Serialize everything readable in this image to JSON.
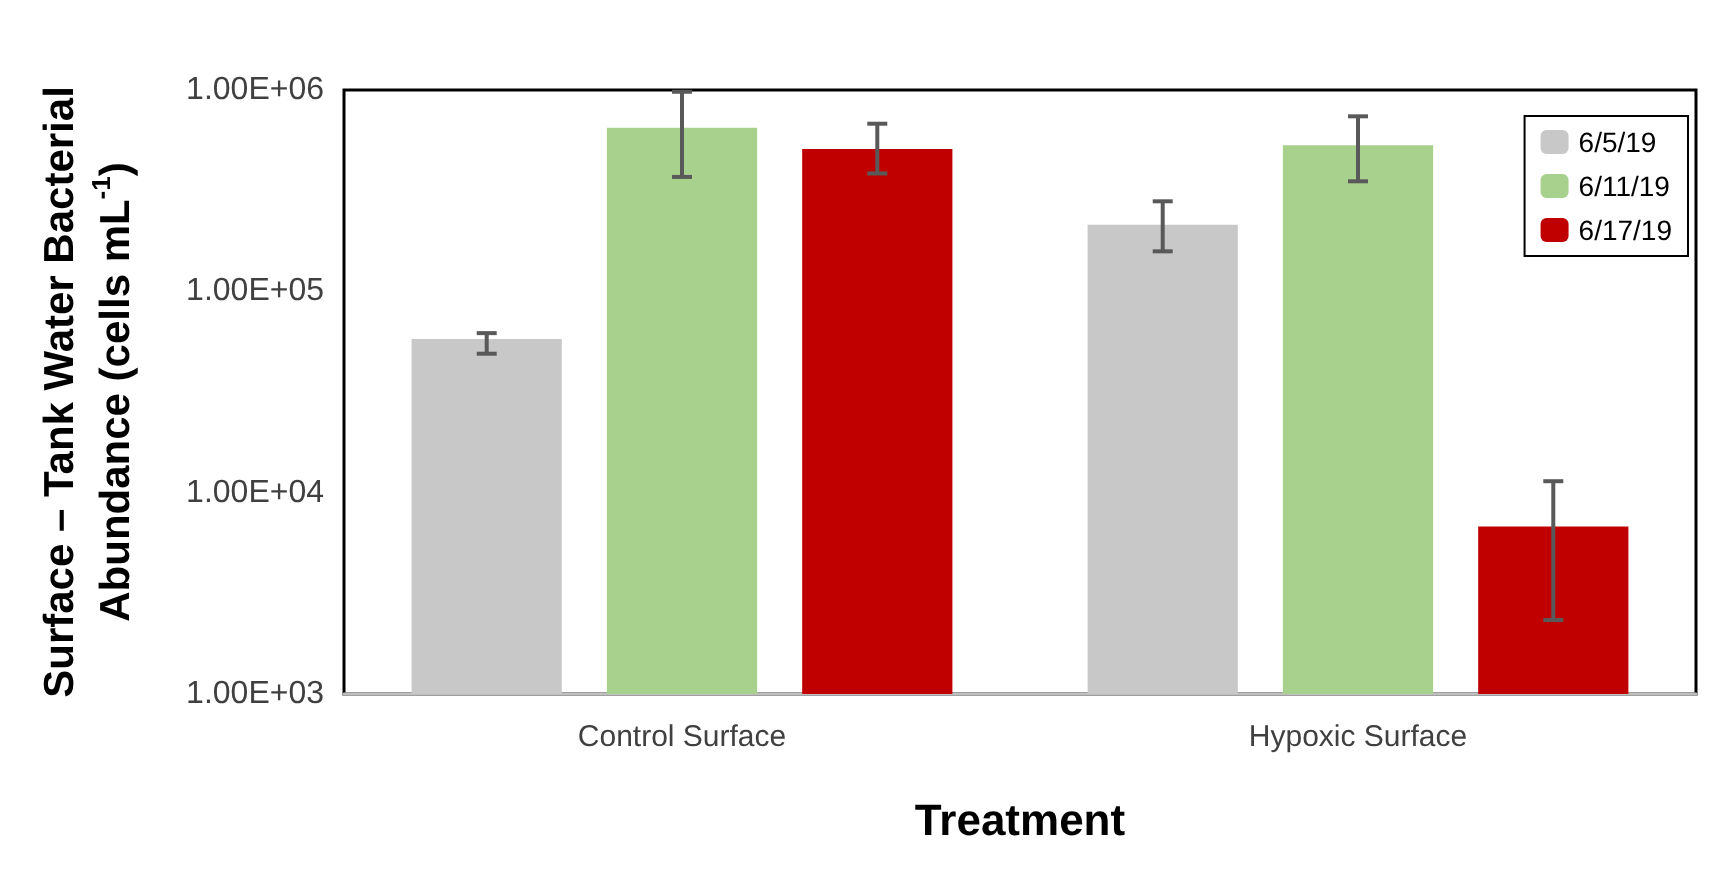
{
  "chart_data": {
    "type": "bar",
    "xlabel": "Treatment",
    "ylabel": "Surface – Tank Water Bacterial Abundance (cells mL$^{-1}$)",
    "categories": [
      "Control Surface",
      "Hypoxic Surface"
    ],
    "series": [
      {
        "name": "6/5/19",
        "color": "#c8c8c8",
        "values": [
          58000,
          214000
        ],
        "errors": [
          [
            49000,
            62000
          ],
          [
            158000,
            280000
          ]
        ]
      },
      {
        "name": "6/11/19",
        "color": "#a9d18e",
        "values": [
          650000,
          532000
        ],
        "errors": [
          [
            370000,
            980000
          ],
          [
            352000,
            740000
          ]
        ]
      },
      {
        "name": "6/17/19",
        "color": "#c00000",
        "values": [
          510000,
          6800
        ],
        "errors": [
          [
            385000,
            680000
          ],
          [
            2330,
            11400
          ]
        ]
      }
    ],
    "log": true,
    "ylim": [
      1000,
      1000000
    ],
    "yticks": [
      {
        "value": 1000,
        "label": "1.00E+03"
      },
      {
        "value": 10000,
        "label": "1.00E+04"
      },
      {
        "value": 100000,
        "label": "1.00E+05"
      },
      {
        "value": 1000000,
        "label": "1.00E+06"
      }
    ],
    "grid": false,
    "legend": "top right"
  }
}
